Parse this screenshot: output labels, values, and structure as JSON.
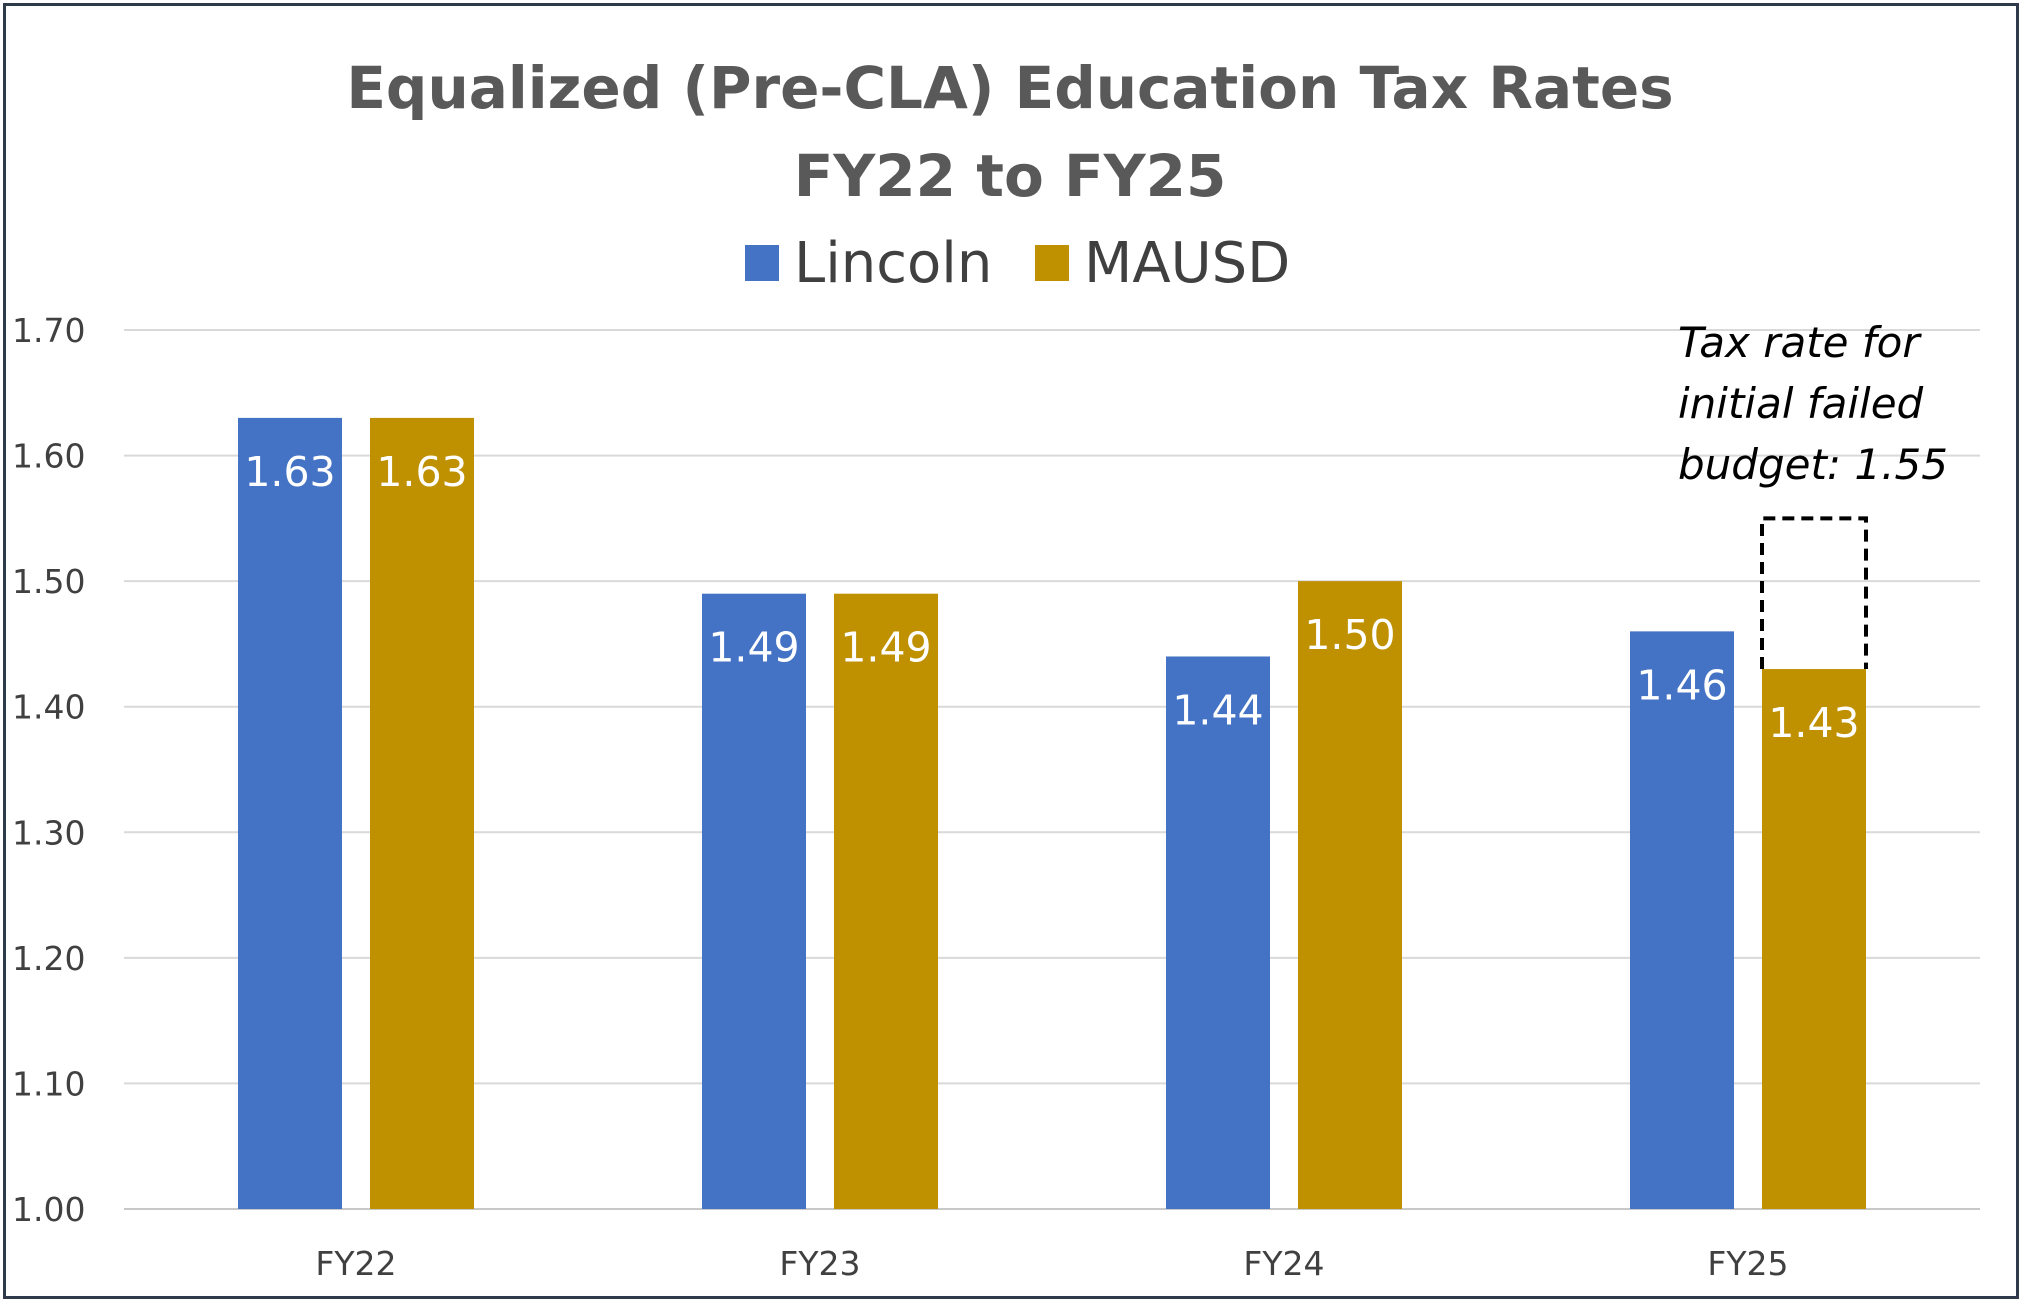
{
  "chart_data": {
    "type": "bar",
    "title_lines": [
      "Equalized (Pre-CLA) Education Tax Rates",
      "FY22 to FY25"
    ],
    "categories": [
      "FY22",
      "FY23",
      "FY24",
      "FY25"
    ],
    "series": [
      {
        "name": "Lincoln",
        "color": "#4472c4",
        "values": [
          1.63,
          1.49,
          1.44,
          1.46
        ],
        "labels": [
          "1.63",
          "1.49",
          "1.44",
          "1.46"
        ]
      },
      {
        "name": "MAUSD",
        "color": "#bf9000",
        "values": [
          1.63,
          1.49,
          1.5,
          1.43
        ],
        "labels": [
          "1.63",
          "1.49",
          "1.50",
          "1.43"
        ]
      }
    ],
    "ylim": [
      1.0,
      1.7
    ],
    "yticks": [
      "1.00",
      "1.10",
      "1.20",
      "1.30",
      "1.40",
      "1.50",
      "1.60",
      "1.70"
    ],
    "ytick_values": [
      1.0,
      1.1,
      1.2,
      1.3,
      1.4,
      1.5,
      1.6,
      1.7
    ],
    "xlabel": "",
    "ylabel": "",
    "grid": true,
    "legend_position": "top-center",
    "annotation": {
      "lines": [
        "Tax rate for",
        "initial failed",
        "budget: 1.55"
      ],
      "category": "FY25",
      "series": "MAUSD",
      "value": 1.55,
      "style": "dashed-outline"
    }
  }
}
